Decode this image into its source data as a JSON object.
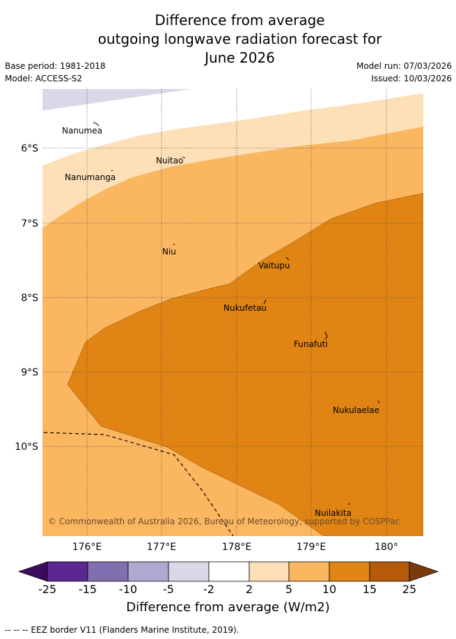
{
  "title_lines": [
    "Difference from average",
    "outgoing longwave radiation forecast for",
    "June 2026"
  ],
  "base_period": "Base period: 1981-2018",
  "model": "Model: ACCESS-S2",
  "model_run": "Model run: 07/03/2026",
  "issued": "Issued: 10/03/2026",
  "map": {
    "lon_range": [
      175.5,
      180.5
    ],
    "lat_range": [
      -11.2,
      -5.2
    ],
    "x_ticks": [
      "176°E",
      "177°E",
      "178°E",
      "179°E",
      "180°"
    ],
    "y_ticks": [
      "6°S",
      "7°S",
      "8°S",
      "9°S",
      "10°S"
    ],
    "islands": [
      "Nanumea",
      "Nuitao",
      "Nanumanga",
      "Niu",
      "Vaitupu",
      "Nukufetau",
      "Funafuti",
      "Nukulaelae",
      "Nuilakita"
    ],
    "copyright": "© Commonwealth of Australia 2026, Bureau of Meteorology, supported by COSPPac"
  },
  "colorbar": {
    "ticks": [
      "-25",
      "-15",
      "-10",
      "-5",
      "-2",
      "2",
      "5",
      "10",
      "15",
      "25"
    ],
    "colors": [
      "#3d0a60",
      "#5a2890",
      "#8070b0",
      "#b0a8d0",
      "#d8d8e8",
      "#ffffff",
      "#fde0b8",
      "#fbb660",
      "#e08414",
      "#b45a0a",
      "#7a3a0c"
    ],
    "label": "Difference from average (W/m2)"
  },
  "legend_note": "--  --  -- EEZ border V11 (Flanders Marine Institute, 2019)."
}
